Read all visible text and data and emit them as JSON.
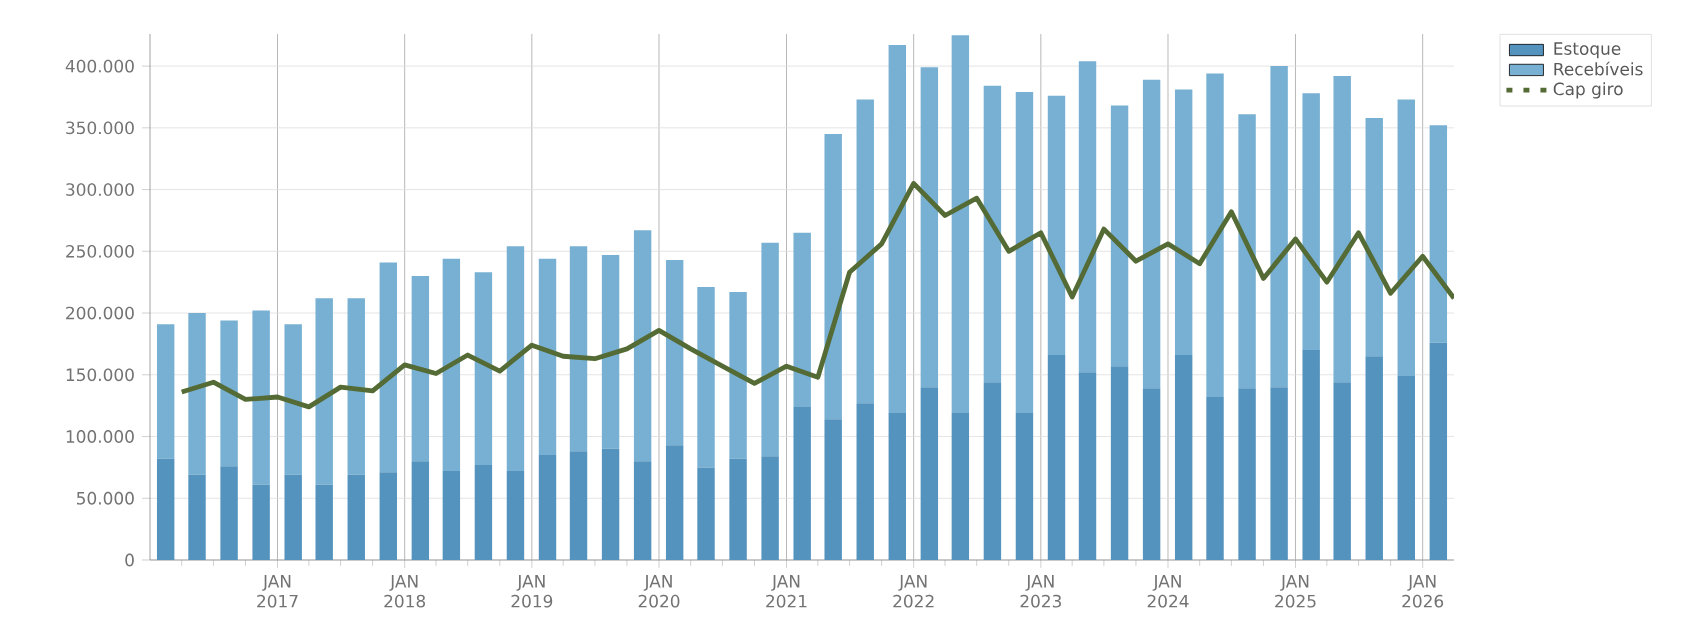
{
  "chart_data": {
    "type": "bar",
    "stacked": true,
    "grid": true,
    "legend": "right",
    "marker": "none",
    "xlim": [
      "2016-01",
      "2026-04"
    ],
    "xticks": [
      {
        "value": "2016-04",
        "label": null
      },
      {
        "value": "2016-07",
        "label": null
      },
      {
        "value": "2016-10",
        "label": null
      },
      {
        "value": "2017-01",
        "label": "JAN 2017"
      },
      {
        "value": "2017-04",
        "label": null
      },
      {
        "value": "2017-07",
        "label": null
      },
      {
        "value": "2017-10",
        "label": null
      },
      {
        "value": "2018-01",
        "label": "JAN 2018"
      },
      {
        "value": "2018-04",
        "label": null
      },
      {
        "value": "2018-07",
        "label": null
      },
      {
        "value": "2018-10",
        "label": null
      },
      {
        "value": "2019-01",
        "label": "JAN 2019"
      },
      {
        "value": "2019-04",
        "label": null
      },
      {
        "value": "2019-07",
        "label": null
      },
      {
        "value": "2019-10",
        "label": null
      },
      {
        "value": "2020-01",
        "label": "JAN 2020"
      },
      {
        "value": "2020-04",
        "label": null
      },
      {
        "value": "2020-07",
        "label": null
      },
      {
        "value": "2020-10",
        "label": null
      },
      {
        "value": "2021-01",
        "label": "JAN 2021"
      },
      {
        "value": "2021-04",
        "label": null
      },
      {
        "value": "2021-07",
        "label": null
      },
      {
        "value": "2021-10",
        "label": null
      },
      {
        "value": "2022-01",
        "label": "JAN 2022"
      },
      {
        "value": "2022-04",
        "label": null
      },
      {
        "value": "2022-07",
        "label": null
      },
      {
        "value": "2022-10",
        "label": null
      },
      {
        "value": "2023-01",
        "label": "JAN 2023"
      },
      {
        "value": "2023-04",
        "label": null
      },
      {
        "value": "2023-07",
        "label": null
      },
      {
        "value": "2023-10",
        "label": null
      },
      {
        "value": "2024-01",
        "label": "JAN 2024"
      },
      {
        "value": "2024-04",
        "label": null
      },
      {
        "value": "2024-07",
        "label": null
      },
      {
        "value": "2024-10",
        "label": null
      },
      {
        "value": "2025-01",
        "label": "JAN 2025"
      },
      {
        "value": "2025-04",
        "label": null
      },
      {
        "value": "2025-07",
        "label": null
      },
      {
        "value": "2025-10",
        "label": null
      },
      {
        "value": "2026-01",
        "label": "JAN 2026"
      }
    ],
    "ylim": [
      0,
      426000
    ],
    "yticks": [
      0,
      {
        "value": 50000,
        "label": "50.000"
      },
      {
        "value": 100000,
        "label": "100.000"
      },
      {
        "value": 150000,
        "label": "150.000"
      },
      {
        "value": 200000,
        "label": "200.000"
      },
      {
        "value": 250000,
        "label": "250.000"
      },
      {
        "value": 300000,
        "label": "300.000"
      },
      {
        "value": 350000,
        "label": "350.000"
      },
      {
        "value": 400000,
        "label": "400.000"
      }
    ],
    "series": [
      {
        "name": "Estoque",
        "color": "#5493be",
        "x": [
          "2016-02-15",
          "2016-05-15",
          "2016-08-15",
          "2016-11-15",
          "2017-02-15",
          "2017-05-15",
          "2017-08-15",
          "2017-11-15",
          "2018-02-15",
          "2018-05-15",
          "2018-08-15",
          "2018-11-15",
          "2019-02-15",
          "2019-05-15",
          "2019-08-15",
          "2019-11-15",
          "2020-02-15",
          "2020-05-15",
          "2020-08-15",
          "2020-11-15",
          "2021-02-15",
          "2021-05-15",
          "2021-08-15",
          "2021-11-15",
          "2022-02-15",
          "2022-05-15",
          "2022-08-15",
          "2022-11-15",
          "2023-02-15",
          "2023-05-15",
          "2023-08-15",
          "2023-11-15",
          "2024-02-15",
          "2024-05-15",
          "2024-08-15",
          "2024-11-15",
          "2025-02-15",
          "2025-05-15",
          "2025-08-15",
          "2025-11-15",
          "2026-02-15"
        ],
        "values": [
          82000,
          69000,
          76000,
          61000,
          69000,
          61000,
          69000,
          71000,
          80000,
          72000,
          77000,
          72000,
          85000,
          88000,
          90000,
          80000,
          93000,
          75000,
          82000,
          84000,
          124000,
          114000,
          127000,
          119000,
          140000,
          119000,
          144000,
          119000,
          166000,
          152000,
          157000,
          139000,
          166000,
          132000,
          139000,
          140000,
          170000,
          144000,
          165000,
          149000,
          176000
        ]
      },
      {
        "name": "Recebíveis",
        "color": "#77b0d2",
        "x": [
          "2016-02-15",
          "2016-05-15",
          "2016-08-15",
          "2016-11-15",
          "2017-02-15",
          "2017-05-15",
          "2017-08-15",
          "2017-11-15",
          "2018-02-15",
          "2018-05-15",
          "2018-08-15",
          "2018-11-15",
          "2019-02-15",
          "2019-05-15",
          "2019-08-15",
          "2019-11-15",
          "2020-02-15",
          "2020-05-15",
          "2020-08-15",
          "2020-11-15",
          "2021-02-15",
          "2021-05-15",
          "2021-08-15",
          "2021-11-15",
          "2022-02-15",
          "2022-05-15",
          "2022-08-15",
          "2022-11-15",
          "2023-02-15",
          "2023-05-15",
          "2023-08-15",
          "2023-11-15",
          "2024-02-15",
          "2024-05-15",
          "2024-08-15",
          "2024-11-15",
          "2025-02-15",
          "2025-05-15",
          "2025-08-15",
          "2025-11-15",
          "2026-02-15"
        ],
        "values": [
          109000,
          131000,
          118000,
          141000,
          122000,
          151000,
          143000,
          170000,
          150000,
          172000,
          156000,
          182000,
          159000,
          166000,
          157000,
          187000,
          150000,
          146000,
          135000,
          173000,
          141000,
          231000,
          246000,
          298000,
          259000,
          306000,
          240000,
          260000,
          210000,
          252000,
          211000,
          250000,
          215000,
          262000,
          222000,
          260000,
          208000,
          248000,
          193000,
          224000,
          176000
        ]
      },
      {
        "name": "Cap giro",
        "type": "line",
        "color": "#556b35",
        "x": [
          "2016-04",
          "2016-07",
          "2016-10",
          "2017-01",
          "2017-04",
          "2017-07",
          "2017-10",
          "2018-01",
          "2018-04",
          "2018-07",
          "2018-10",
          "2019-01",
          "2019-04",
          "2019-07",
          "2019-10",
          "2020-01",
          "2020-04",
          "2020-07",
          "2020-10",
          "2021-01",
          "2021-04",
          "2021-07",
          "2021-10",
          "2022-01",
          "2022-04",
          "2022-07",
          "2022-10",
          "2023-01",
          "2023-04",
          "2023-07",
          "2023-10",
          "2024-01",
          "2024-04",
          "2024-07",
          "2024-10",
          "2025-01",
          "2025-04",
          "2025-07",
          "2025-10",
          "2026-01",
          "2026-04"
        ],
        "values": [
          136000,
          144000,
          130000,
          132000,
          124000,
          140000,
          137000,
          158000,
          151000,
          166000,
          153000,
          174000,
          165000,
          163000,
          171000,
          186000,
          171000,
          157000,
          143000,
          157000,
          148000,
          233000,
          256000,
          305000,
          279000,
          293000,
          250000,
          265000,
          213000,
          268000,
          242000,
          256000,
          240000,
          282000,
          228000,
          260000,
          225000,
          265000,
          216000,
          246000,
          212000
        ]
      }
    ]
  }
}
